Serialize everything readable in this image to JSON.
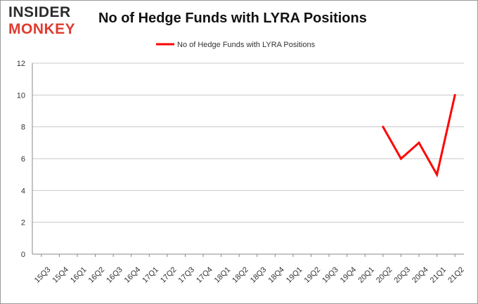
{
  "logo": {
    "line1": "INSIDER",
    "line2": "MONKEY"
  },
  "chart_data": {
    "type": "line",
    "title": "No of Hedge Funds with LYRA Positions",
    "xlabel": "",
    "ylabel": "",
    "categories": [
      "15Q3",
      "15Q4",
      "16Q1",
      "16Q2",
      "16Q3",
      "16Q4",
      "17Q1",
      "17Q2",
      "17Q3",
      "17Q4",
      "18Q1",
      "18Q2",
      "18Q3",
      "18Q4",
      "19Q1",
      "19Q2",
      "19Q3",
      "19Q4",
      "20Q1",
      "20Q2",
      "20Q3",
      "20Q4",
      "21Q1",
      "21Q2"
    ],
    "series": [
      {
        "name": "No of Hedge Funds with LYRA Positions",
        "color": "#ff0000",
        "values": [
          null,
          null,
          null,
          null,
          null,
          null,
          null,
          null,
          null,
          null,
          null,
          null,
          null,
          null,
          null,
          null,
          null,
          null,
          null,
          8,
          6,
          7,
          5,
          10
        ]
      }
    ],
    "ylim": [
      0,
      12
    ],
    "yticks": [
      0,
      2,
      4,
      6,
      8,
      10,
      12
    ],
    "grid": true,
    "legend": "top-center"
  }
}
